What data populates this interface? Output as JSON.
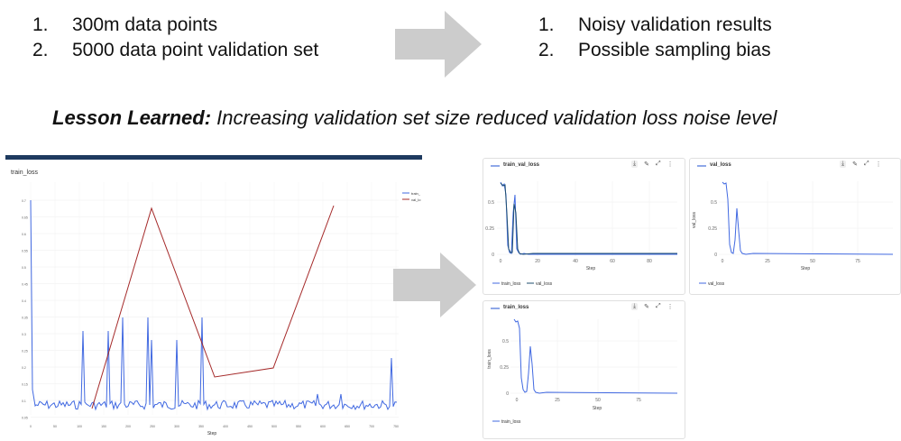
{
  "left_list": [
    "300m data points",
    "5000 data point validation set"
  ],
  "left_nums": [
    "1.",
    "2."
  ],
  "right_list": [
    "Noisy validation results",
    "Possible sampling bias"
  ],
  "right_nums": [
    "1.",
    "2."
  ],
  "lesson": {
    "bold": "Lesson Learned:",
    "text": " Increasing validation set size reduced validation loss noise level"
  },
  "colors": {
    "blue": "#4169e1",
    "red": "#a52a2a",
    "navy": "#1e3a5f",
    "arrow": "#cccccc"
  },
  "left_chart": {
    "title": "train_loss",
    "legend": [
      "train_",
      "val_lo"
    ],
    "xlabel": "Step",
    "xticks": [
      "0",
      "50",
      "100",
      "150",
      "200",
      "250",
      "300",
      "350",
      "400",
      "450",
      "500",
      "550",
      "600",
      "650",
      "700",
      "750"
    ],
    "yticks": [
      "0.7",
      "0.65",
      "0.6",
      "0.55",
      "0.5",
      "0.45",
      "0.4",
      "0.35",
      "0.3",
      "0.25",
      "0.2",
      "0.15",
      "0.1",
      "0.05"
    ]
  },
  "panels": {
    "train_val_loss": {
      "title": "train_val_loss",
      "xlabel": "Step",
      "yticks": [
        "0.5",
        "0.25",
        "0"
      ],
      "xticks": [
        "0",
        "20",
        "40",
        "60",
        "80"
      ],
      "legend": [
        "train_loss",
        "val_loss"
      ]
    },
    "val_loss": {
      "title": "val_loss",
      "xlabel": "Step",
      "ylabel": "val_loss",
      "yticks": [
        "0.5",
        "0.25",
        "0"
      ],
      "xticks": [
        "0",
        "25",
        "50",
        "75"
      ],
      "legend": [
        "val_loss"
      ]
    },
    "train_loss": {
      "title": "train_loss",
      "xlabel": "Step",
      "ylabel": "train_loss",
      "yticks": [
        "0.5",
        "0.25",
        "0"
      ],
      "xticks": [
        "0",
        "25",
        "50",
        "75"
      ],
      "legend": [
        "train_loss"
      ]
    }
  },
  "icons": [
    "download-icon",
    "edit-icon",
    "expand-icon",
    "more-icon"
  ]
}
